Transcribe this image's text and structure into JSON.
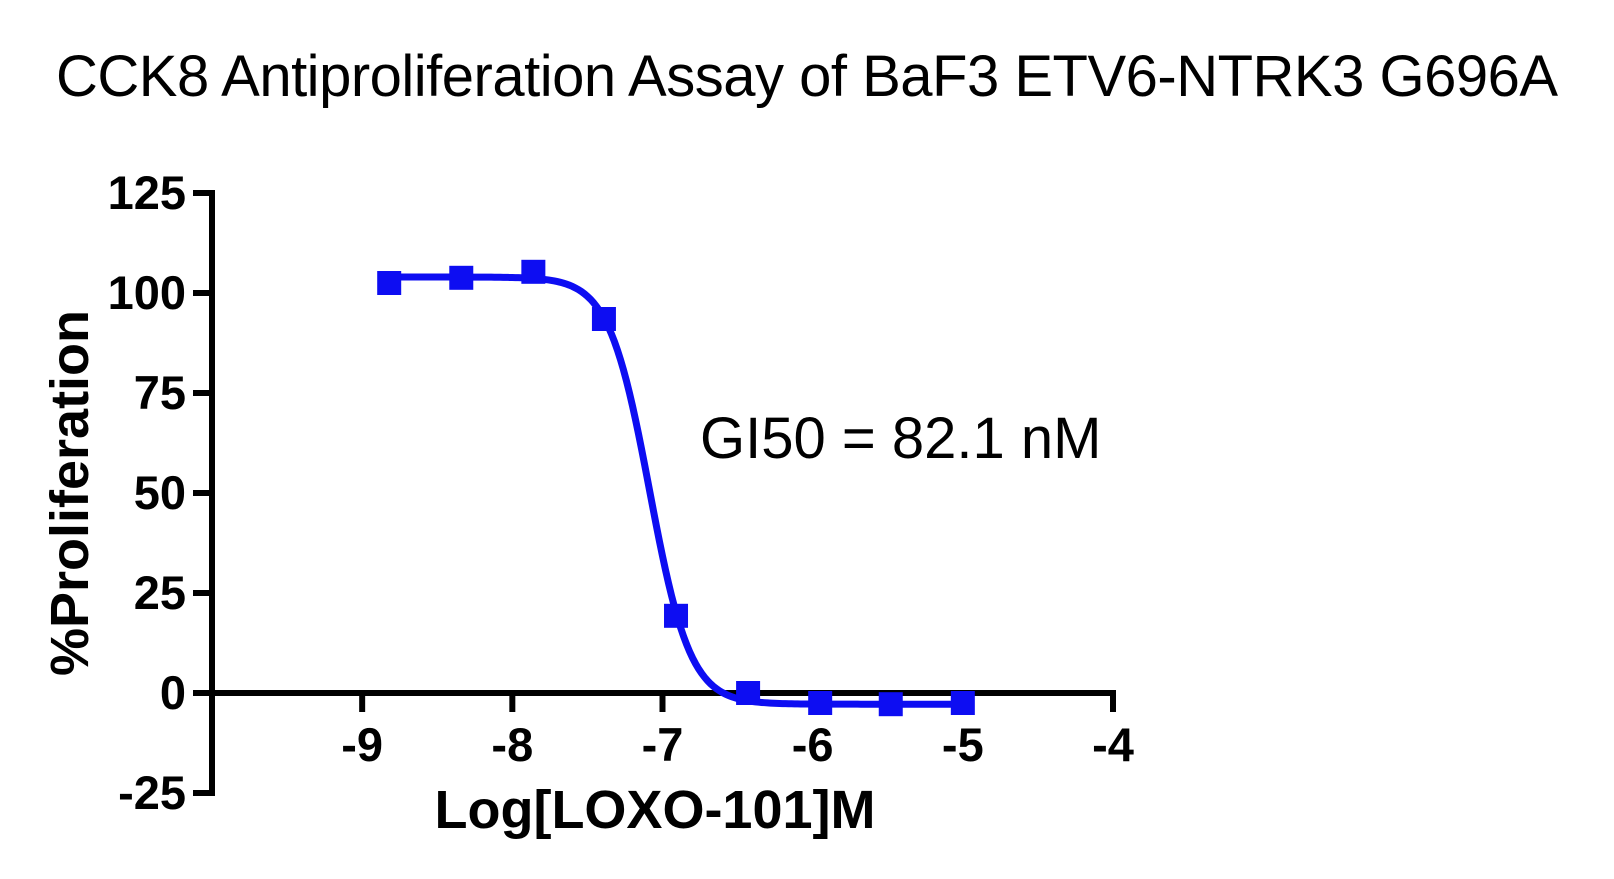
{
  "chart_data": {
    "type": "scatter",
    "subtype": "dose-response-inhibition-curve",
    "title": "CCK8 Antiproliferation Assay of BaF3 ETV6-NTRK3 G696A",
    "xlabel": "Log[LOXO-101]M",
    "ylabel": "%Proliferation",
    "xlim": [
      -10,
      -4
    ],
    "ylim": [
      -25,
      125
    ],
    "x_ticks": [
      -9,
      -8,
      -7,
      -6,
      -5,
      -4
    ],
    "y_ticks": [
      125,
      100,
      75,
      50,
      25,
      0,
      -25
    ],
    "grid": false,
    "legend_position": "none",
    "annotation": "GI50 = 82.1 nM",
    "series": [
      {
        "name": "BaF3 ETV6-NTRK3 G696A",
        "marker": "square",
        "points": [
          {
            "x": -8.82,
            "y": 102.5
          },
          {
            "x": -8.34,
            "y": 103.8
          },
          {
            "x": -7.86,
            "y": 105.3
          },
          {
            "x": -7.39,
            "y": 93.5
          },
          {
            "x": -6.91,
            "y": 19.3
          },
          {
            "x": -6.43,
            "y": 0.0
          },
          {
            "x": -5.95,
            "y": -2.5
          },
          {
            "x": -5.48,
            "y": -2.8
          },
          {
            "x": -5.0,
            "y": -2.5
          }
        ]
      }
    ],
    "fit_curve": {
      "model": "four-parameter-logistic",
      "top": 104,
      "bottom": -2.8,
      "log_gi50": -7.086,
      "gi50_nM": 82.1,
      "hill_slope": -3.2,
      "x_range": [
        -8.82,
        -5.0
      ]
    }
  },
  "colors": {
    "series_blue": "#0d0df2",
    "axis_black": "#000000",
    "background": "#ffffff"
  }
}
